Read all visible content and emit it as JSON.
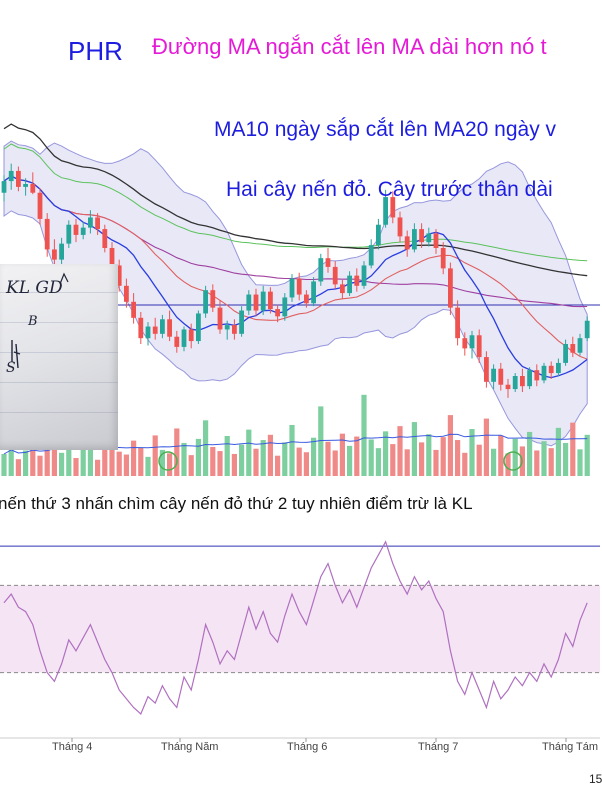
{
  "annotations": {
    "ticker": "PHR",
    "pink": "Đường MA ngắn cắt lên MA dài hơn nó t",
    "blue1": "MA10 ngày sắp cắt lên MA20 ngày v",
    "blue2": "Hai cây nến đỏ. Cây trước thân dài",
    "black": "nến thứ 3 nhấn chìm cây nến đỏ thứ 2 tuy nhiên điểm trừ là KL",
    "corner": "15"
  },
  "handwritten_note": {
    "line1": "KL GD",
    "line2": "B",
    "line3": "S"
  },
  "colors": {
    "up": "#26a69a",
    "down": "#ef5350",
    "bollinger_fill": "#6f6fd0",
    "ma10": "#2a3ee0",
    "ma20": "#e06060",
    "ma50": "#a040a0",
    "ma100": "#5bc25b",
    "ma200": "#333333",
    "rsi": "#b070c0",
    "rsi_band": "#f4e4f4",
    "hline": "#3030b0"
  },
  "chart_data": [
    {
      "type": "candlestick",
      "x_labels": [
        "Tháng 4",
        "Tháng Năm",
        "Tháng 6",
        "Tháng 7",
        "Tháng Tám"
      ],
      "candles": [
        [
          57.0,
          58.2,
          56.4,
          57.8
        ],
        [
          57.8,
          59.0,
          57.2,
          58.5
        ],
        [
          58.5,
          58.8,
          57.1,
          57.4
        ],
        [
          57.4,
          58.0,
          56.8,
          57.6
        ],
        [
          57.6,
          58.4,
          56.9,
          57.0
        ],
        [
          57.0,
          57.3,
          54.8,
          55.2
        ],
        [
          55.2,
          55.6,
          52.6,
          53.1
        ],
        [
          53.1,
          53.8,
          51.9,
          52.4
        ],
        [
          52.4,
          53.9,
          52.0,
          53.5
        ],
        [
          53.5,
          55.1,
          53.2,
          54.8
        ],
        [
          54.8,
          55.2,
          53.6,
          54.1
        ],
        [
          54.1,
          55.0,
          53.8,
          54.6
        ],
        [
          54.6,
          55.8,
          54.2,
          55.3
        ],
        [
          55.3,
          55.6,
          54.1,
          54.5
        ],
        [
          54.5,
          54.8,
          52.9,
          53.2
        ],
        [
          53.2,
          53.6,
          51.6,
          52.0
        ],
        [
          52.0,
          52.4,
          50.2,
          50.6
        ],
        [
          50.6,
          51.1,
          49.1,
          49.5
        ],
        [
          49.5,
          50.1,
          48.0,
          48.4
        ],
        [
          48.4,
          48.8,
          46.6,
          47.0
        ],
        [
          47.0,
          48.1,
          46.5,
          47.8
        ],
        [
          47.8,
          48.4,
          46.9,
          47.3
        ],
        [
          47.3,
          48.6,
          47.0,
          48.3
        ],
        [
          48.3,
          48.9,
          46.8,
          47.1
        ],
        [
          47.1,
          47.5,
          46.0,
          46.4
        ],
        [
          46.4,
          47.8,
          46.1,
          47.6
        ],
        [
          47.6,
          48.0,
          46.3,
          46.8
        ],
        [
          46.8,
          48.9,
          46.6,
          48.7
        ],
        [
          48.7,
          50.6,
          48.4,
          50.3
        ],
        [
          50.3,
          50.7,
          48.8,
          49.1
        ],
        [
          49.1,
          49.6,
          47.3,
          47.6
        ],
        [
          47.6,
          48.2,
          46.9,
          47.9
        ],
        [
          47.9,
          48.3,
          46.9,
          47.3
        ],
        [
          47.3,
          49.2,
          47.1,
          48.9
        ],
        [
          48.9,
          50.3,
          48.6,
          50.0
        ],
        [
          50.0,
          50.4,
          48.5,
          48.9
        ],
        [
          48.9,
          50.6,
          48.6,
          50.2
        ],
        [
          50.2,
          50.5,
          48.7,
          49.0
        ],
        [
          49.0,
          49.3,
          48.1,
          48.5
        ],
        [
          48.5,
          50.1,
          48.2,
          49.8
        ],
        [
          49.8,
          51.4,
          49.5,
          51.1
        ],
        [
          51.1,
          51.5,
          49.6,
          50.0
        ],
        [
          50.0,
          50.3,
          49.1,
          49.4
        ],
        [
          49.4,
          51.2,
          49.2,
          50.9
        ],
        [
          50.9,
          52.8,
          50.6,
          52.5
        ],
        [
          52.5,
          53.2,
          51.5,
          51.9
        ],
        [
          51.9,
          52.3,
          50.4,
          50.7
        ],
        [
          50.7,
          51.0,
          49.7,
          50.1
        ],
        [
          50.1,
          51.6,
          49.9,
          51.3
        ],
        [
          51.3,
          51.8,
          50.2,
          50.6
        ],
        [
          50.6,
          52.3,
          50.4,
          52.0
        ],
        [
          52.0,
          53.8,
          51.8,
          53.4
        ],
        [
          53.4,
          55.2,
          53.1,
          54.8
        ],
        [
          54.8,
          57.2,
          54.6,
          56.7
        ],
        [
          56.7,
          57.1,
          54.9,
          55.3
        ],
        [
          55.3,
          55.7,
          53.6,
          54.0
        ],
        [
          54.0,
          54.4,
          52.6,
          53.1
        ],
        [
          53.1,
          54.9,
          52.9,
          54.5
        ],
        [
          54.5,
          54.9,
          53.2,
          53.6
        ],
        [
          53.6,
          54.6,
          53.3,
          54.2
        ],
        [
          54.2,
          54.5,
          52.8,
          53.2
        ],
        [
          53.2,
          53.6,
          51.4,
          51.8
        ],
        [
          51.8,
          52.2,
          48.6,
          49.1
        ],
        [
          49.1,
          49.6,
          46.5,
          47.0
        ],
        [
          47.0,
          47.4,
          45.8,
          46.3
        ],
        [
          46.3,
          47.5,
          45.6,
          47.2
        ],
        [
          47.2,
          47.6,
          45.3,
          45.7
        ],
        [
          45.7,
          46.1,
          43.6,
          44.0
        ],
        [
          44.0,
          45.2,
          43.5,
          44.9
        ],
        [
          44.9,
          45.3,
          43.4,
          43.8
        ],
        [
          43.8,
          44.2,
          42.9,
          43.5
        ],
        [
          43.5,
          44.6,
          43.3,
          44.4
        ],
        [
          44.4,
          44.9,
          43.3,
          43.7
        ],
        [
          43.7,
          45.0,
          43.5,
          44.8
        ],
        [
          44.8,
          45.2,
          43.7,
          44.1
        ],
        [
          44.1,
          45.3,
          43.9,
          45.1
        ],
        [
          45.1,
          45.4,
          44.2,
          44.6
        ],
        [
          44.6,
          45.6,
          44.4,
          45.3
        ],
        [
          45.3,
          46.9,
          45.1,
          46.6
        ],
        [
          46.6,
          47.1,
          45.7,
          46.0
        ],
        [
          46.0,
          47.3,
          45.8,
          47.0
        ],
        [
          47.0,
          48.5,
          46.8,
          48.2
        ]
      ],
      "volume": [
        38,
        52,
        29,
        44,
        60,
        35,
        48,
        72,
        40,
        55,
        31,
        46,
        66,
        28,
        58,
        90,
        42,
        37,
        61,
        49,
        33,
        70,
        45,
        39,
        82,
        57,
        36,
        64,
        96,
        50,
        43,
        69,
        38,
        54,
        80,
        47,
        62,
        71,
        35,
        58,
        88,
        49,
        41,
        66,
        120,
        59,
        44,
        73,
        52,
        68,
        140,
        63,
        48,
        77,
        55,
        86,
        46,
        93,
        58,
        72,
        45,
        67,
        105,
        62,
        40,
        81,
        54,
        99,
        47,
        70,
        39,
        64,
        51,
        76,
        44,
        60,
        48,
        83,
        57,
        92,
        46,
        71
      ],
      "rsi": [
        62,
        66,
        60,
        58,
        52,
        40,
        30,
        26,
        34,
        45,
        40,
        46,
        52,
        44,
        36,
        30,
        22,
        18,
        14,
        11,
        19,
        16,
        24,
        18,
        14,
        28,
        22,
        36,
        52,
        44,
        34,
        40,
        36,
        48,
        60,
        50,
        58,
        48,
        44,
        56,
        66,
        58,
        52,
        63,
        74,
        80,
        70,
        62,
        68,
        60,
        69,
        78,
        84,
        90,
        80,
        72,
        66,
        74,
        68,
        72,
        64,
        58,
        40,
        26,
        20,
        30,
        22,
        14,
        26,
        18,
        22,
        28,
        24,
        30,
        26,
        34,
        28,
        36,
        48,
        42,
        54,
        62
      ]
    }
  ]
}
